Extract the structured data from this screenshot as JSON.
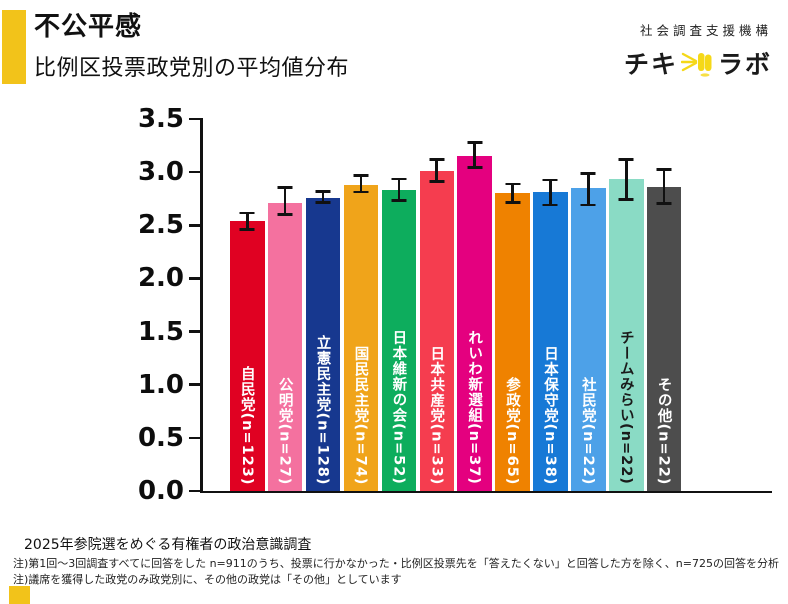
{
  "header": {
    "title": "不公平感",
    "subtitle": "比例区投票政党別の平均値分布",
    "accent_color": "#F2C31A"
  },
  "logo": {
    "org_name": "社会調査支援機構",
    "brand_left": "チキ",
    "brand_right": "ラボ",
    "icon": "megaphone-icon",
    "icon_color": "#F5D818"
  },
  "chart_data": {
    "type": "bar",
    "title": "不公平感 比例区投票政党別の平均値分布",
    "xlabel": "",
    "ylabel": "",
    "ylim": [
      0,
      3.5
    ],
    "ytick_step": 0.5,
    "yticks": [
      "0.0",
      "0.5",
      "1.0",
      "1.5",
      "2.0",
      "2.5",
      "3.0",
      "3.5"
    ],
    "grid": false,
    "error_bars": true,
    "bars": [
      {
        "label": "自民党(n=123)",
        "party": "自民党",
        "n": 123,
        "value": 2.54,
        "err_low": 2.46,
        "err_high": 2.62,
        "color": "#E00122",
        "label_color": "#FFFFFF"
      },
      {
        "label": "公明党(n=27)",
        "party": "公明党",
        "n": 27,
        "value": 2.71,
        "err_low": 2.6,
        "err_high": 2.86,
        "color": "#F4719F",
        "label_color": "#FFFFFF"
      },
      {
        "label": "立憲民主党(n=128)",
        "party": "立憲民主党",
        "n": 128,
        "value": 2.76,
        "err_low": 2.71,
        "err_high": 2.82,
        "color": "#17388F",
        "label_color": "#FFFFFF"
      },
      {
        "label": "国民民主党(n=74)",
        "party": "国民民主党",
        "n": 74,
        "value": 2.88,
        "err_low": 2.81,
        "err_high": 2.97,
        "color": "#F0A41A",
        "label_color": "#FFFFFF"
      },
      {
        "label": "日本維新の会(n=52)",
        "party": "日本維新の会",
        "n": 52,
        "value": 2.83,
        "err_low": 2.73,
        "err_high": 2.94,
        "color": "#0DAD5D",
        "label_color": "#FFFFFF"
      },
      {
        "label": "日本共産党(n=33)",
        "party": "日本共産党",
        "n": 33,
        "value": 3.01,
        "err_low": 2.91,
        "err_high": 3.12,
        "color": "#F53D4F",
        "label_color": "#FFFFFF"
      },
      {
        "label": "れいわ新選組(n=37)",
        "party": "れいわ新選組",
        "n": 37,
        "value": 3.15,
        "err_low": 3.04,
        "err_high": 3.28,
        "color": "#E4007F",
        "label_color": "#FFFFFF"
      },
      {
        "label": "参政党(n=65)",
        "party": "参政党",
        "n": 65,
        "value": 2.8,
        "err_low": 2.71,
        "err_high": 2.89,
        "color": "#EF8200",
        "label_color": "#FFFFFF"
      },
      {
        "label": "日本保守党(n=38)",
        "party": "日本保守党",
        "n": 38,
        "value": 2.81,
        "err_low": 2.69,
        "err_high": 2.93,
        "color": "#1779D6",
        "label_color": "#FFFFFF"
      },
      {
        "label": "社民党(n=22)",
        "party": "社民党",
        "n": 22,
        "value": 2.85,
        "err_low": 2.69,
        "err_high": 2.99,
        "color": "#4DA1E8",
        "label_color": "#FFFFFF"
      },
      {
        "label": "チームみらい(n=22)",
        "party": "チームみらい",
        "n": 22,
        "value": 2.94,
        "err_low": 2.74,
        "err_high": 3.12,
        "color": "#8ADBC5",
        "label_color": "#1A1A1A"
      },
      {
        "label": "その他(n=22)",
        "party": "その他",
        "n": 22,
        "value": 2.86,
        "err_low": 2.7,
        "err_high": 3.03,
        "color": "#4D4D4D",
        "label_color": "#FFFFFF"
      }
    ]
  },
  "footer": {
    "source": "2025年参院選をめぐる有権者の政治意識調査",
    "note1": "注)第1回～3回調査すべてに回答をした n=911のうち、投票に行かなかった・比例区投票先を「答えたくない」と回答した方を除く、n=725の回答を分析",
    "note2": "注)議席を獲得した政党のみ政党別に、その他の政党は「その他」としています"
  }
}
